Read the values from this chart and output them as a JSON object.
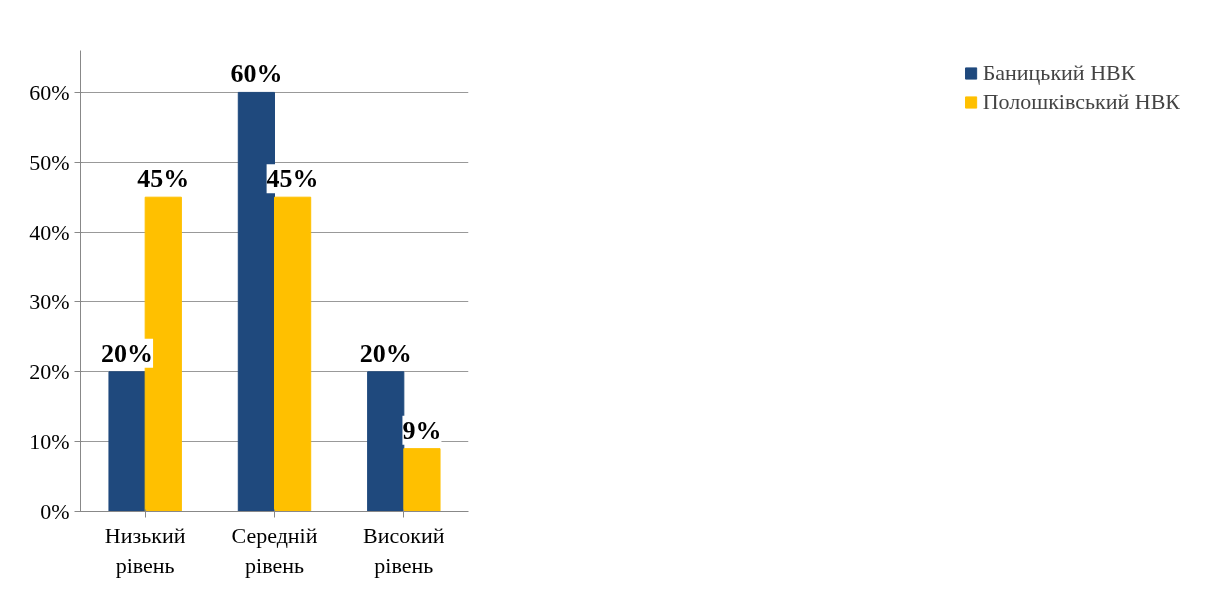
{
  "chart_data": {
    "type": "bar",
    "categories": [
      "Низький рівень",
      "Середній рівень",
      "Високий рівень"
    ],
    "series": [
      {
        "name": "Баницький НВК",
        "color": "#1f497d",
        "values": [
          20,
          60,
          20
        ],
        "value_labels": [
          "20%",
          "60%",
          "20%"
        ]
      },
      {
        "name": "Полошківський НВК",
        "color": "#ffc000",
        "values": [
          45,
          45,
          9
        ],
        "value_labels": [
          "45%",
          "45%",
          "9%"
        ]
      }
    ],
    "ylim": [
      0,
      66
    ],
    "yticks": [
      {
        "value": 0,
        "label": "0%"
      },
      {
        "value": 10,
        "label": "10%"
      },
      {
        "value": 20,
        "label": "20%"
      },
      {
        "value": 30,
        "label": "30%"
      },
      {
        "value": 40,
        "label": "40%"
      },
      {
        "value": 50,
        "label": "50%"
      },
      {
        "value": 60,
        "label": "60%"
      }
    ],
    "grid": "y",
    "legend": "right"
  }
}
